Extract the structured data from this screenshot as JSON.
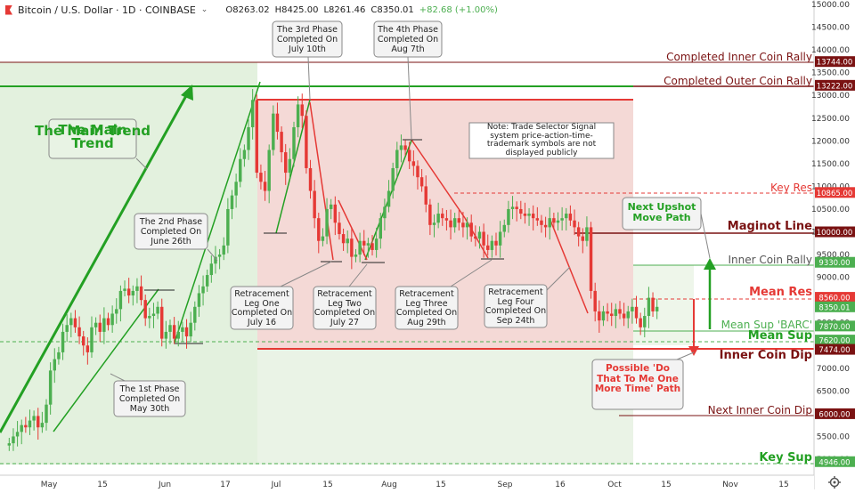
{
  "header": {
    "symbol": "Bitcoin / U.S. Dollar · 1D · COINBASE",
    "open": "O8263.02",
    "high": "H8425.00",
    "low": "L8261.46",
    "close": "C8350.01",
    "change": "+82.68 (+1.00%)",
    "logo_icon": "exchange-flag-icon",
    "dropdown_icon": "chevron-down-icon"
  },
  "footer": {
    "settings_icon": "gear-icon"
  },
  "colors": {
    "candle_up": "#4caf50",
    "candle_down": "#e53935",
    "trend_green": "#23a023",
    "resistance_red": "#e53935",
    "maroon": "#7a1212",
    "green_zone": "#e3f1de",
    "red_zone": "#f4d9d6"
  },
  "chart_data": {
    "type": "candlestick",
    "title": "Bitcoin / U.S. Dollar · 1D · COINBASE",
    "ylim": [
      4700,
      15200
    ],
    "y_ticks": [
      5000,
      5500,
      6000,
      6500,
      7000,
      7500,
      8000,
      8500,
      9000,
      9500,
      10000,
      10500,
      11000,
      11500,
      12000,
      12500,
      13000,
      13500,
      14000,
      14500,
      15000
    ],
    "y_tick_labels": [
      "5000.00",
      "5500.00",
      "6000.00",
      "6500.00",
      "7000.00",
      "7500.00",
      "8000.00",
      "8500.00",
      "9000.00",
      "9500.00",
      "10000.00",
      "10500.00",
      "11000.00",
      "11500.00",
      "12000.00",
      "12500.00",
      "13000.00",
      "13500.00",
      "14000.00",
      "14500.00",
      "15000.00"
    ],
    "x_ticks": [
      {
        "label": "May",
        "day": 0
      },
      {
        "label": "15",
        "day": 14
      },
      {
        "label": "Jun",
        "day": 31
      },
      {
        "label": "17",
        "day": 47
      },
      {
        "label": "Jul",
        "day": 61
      },
      {
        "label": "15",
        "day": 75
      },
      {
        "label": "Aug",
        "day": 92
      },
      {
        "label": "15",
        "day": 106
      },
      {
        "label": "Sep",
        "day": 123
      },
      {
        "label": "16",
        "day": 138
      },
      {
        "label": "Oct",
        "day": 153
      },
      {
        "label": "15",
        "day": 167
      },
      {
        "label": "Nov",
        "day": 184
      },
      {
        "label": "15",
        "day": 198
      }
    ],
    "candles_close": [
      5350,
      5500,
      5600,
      5750,
      5700,
      5850,
      5950,
      5700,
      5800,
      6200,
      6950,
      7200,
      7350,
      7800,
      7950,
      8100,
      7900,
      7700,
      7500,
      7350,
      7900,
      8000,
      7800,
      8100,
      7950,
      8200,
      8300,
      8700,
      8750,
      8600,
      8700,
      8800,
      8500,
      8100,
      8150,
      8200,
      8350,
      7650,
      7800,
      7950,
      7650,
      7800,
      7900,
      7700,
      8000,
      8350,
      8650,
      8800,
      9050,
      9300,
      9450,
      9500,
      9700,
      10500,
      10800,
      11100,
      11600,
      11800,
      12300,
      12900,
      11300,
      11100,
      10900,
      11800,
      12600,
      12200,
      11750,
      11300,
      11600,
      12300,
      12800,
      12550,
      11400,
      10900,
      10300,
      9800,
      9900,
      10500,
      10600,
      10200,
      9950,
      9750,
      9850,
      9450,
      9500,
      9800,
      9700,
      9750,
      9600,
      9850,
      10300,
      10550,
      10900,
      11400,
      11800,
      11900,
      11800,
      11550,
      11450,
      11200,
      11000,
      10600,
      10150,
      10200,
      10400,
      10300,
      10250,
      10100,
      10300,
      10200,
      10100,
      10200,
      9900,
      9850,
      10000,
      9700,
      9600,
      9800,
      9700,
      10000,
      10150,
      10500,
      10550,
      10500,
      10400,
      10350,
      10400,
      10300,
      10250,
      10150,
      10100,
      10300,
      10200,
      10250,
      10300,
      10400,
      10250,
      10100,
      9900,
      9800,
      10100,
      8700,
      8250,
      8050,
      8250,
      8200,
      8150,
      8300,
      8200,
      8100,
      8250,
      8350,
      8100,
      7900,
      8150,
      8550,
      8250,
      8350
    ],
    "candle_open_start": 5300,
    "levels": [
      {
        "name": "Completed Inner Coin Rally",
        "value": 13744,
        "label": "13744.00"
      },
      {
        "name": "Completed Outer Coin Rally",
        "value": 13222,
        "label": "13222.00"
      },
      {
        "name": "Key Res",
        "value": 10865,
        "label": "10865.00"
      },
      {
        "name": "Maginot Line",
        "value": 10000,
        "label": "10000.00"
      },
      {
        "name": "Inner Coin Rally",
        "value": 9330,
        "label": "9330.00"
      },
      {
        "name": "Mean Res",
        "value": 8560,
        "label": "8560.00"
      },
      {
        "name": "Last Price",
        "value": 8350,
        "label": "8350.01"
      },
      {
        "name": "Mean Sup 'BARC'",
        "value": 7870,
        "label": "7870.00"
      },
      {
        "name": "Mean Sup",
        "value": 7620,
        "label": "7620.00"
      },
      {
        "name": "Inner Coin Dip",
        "value": 7474,
        "label": "7474.00"
      },
      {
        "name": "Next Inner Coin Dip",
        "value": 6000,
        "label": "6000.00"
      },
      {
        "name": "Key Sup",
        "value": 4946,
        "label": "4946.00"
      }
    ],
    "annotations": {
      "main_trend": "The Main Trend",
      "phase1": "The 1st Phase Completed On May 30th",
      "phase2": "The 2nd Phase Completed On June 26th",
      "phase3": "The 3rd Phase Completed On July 10th",
      "phase4": "The 4th Phase Completed On Aug 7th",
      "leg1": "Retracement Leg One Completed On July 16",
      "leg2": "Retracement Leg Two Completed On July 27",
      "leg3": "Retracement Leg Three Completed On Aug 29th",
      "leg4": "Retracement Leg Four Completed On Sep 24th",
      "note": "Note: Trade Selector Signal system price-action-time-trademark symbols are not displayed publicly",
      "upshot": "Next Upshot Move Path",
      "possible": "Possible 'Do That To Me One More Time' Path"
    }
  }
}
